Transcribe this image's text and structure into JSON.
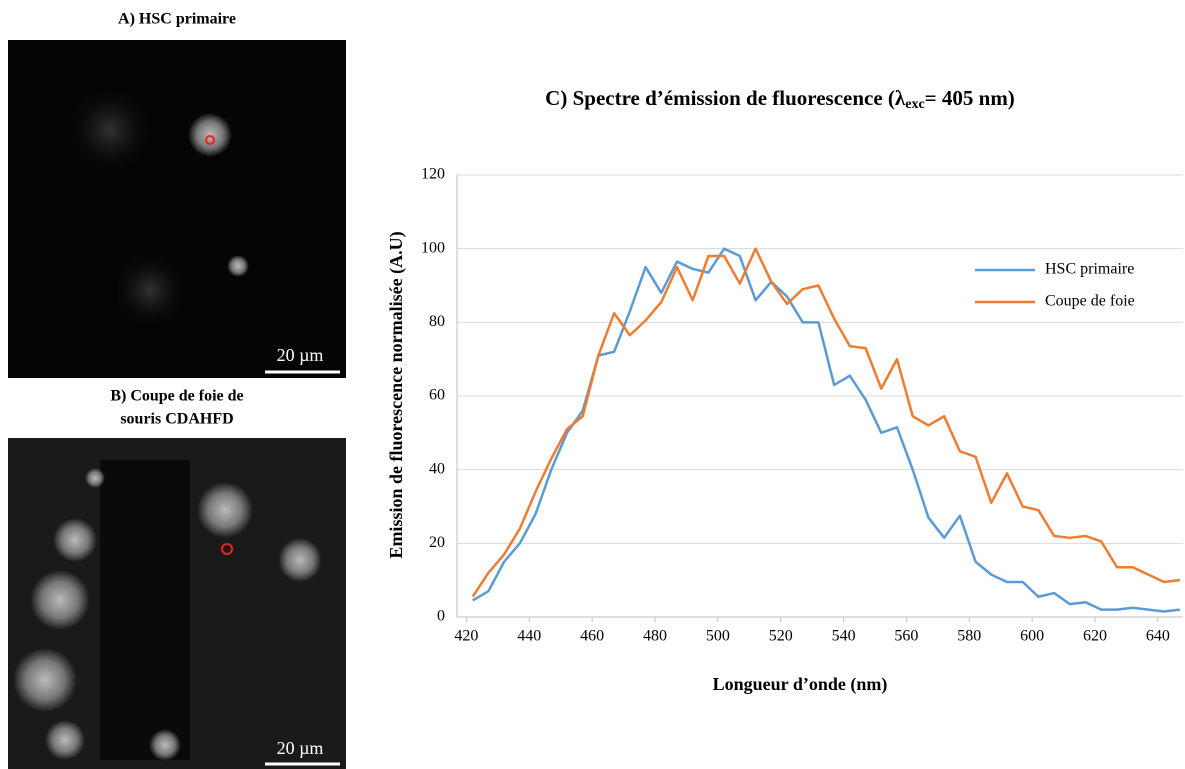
{
  "panels": [
    {
      "label": [
        "A) HSC primaire"
      ],
      "scale_bar": "20 µm"
    },
    {
      "label": [
        "B) Coupe de foie de",
        "souris CDAHFD"
      ],
      "scale_bar": "20 µm"
    }
  ],
  "chart_data": {
    "type": "line",
    "title": [
      "C) Spectre d’émission de fluorescence (λ",
      "exc",
      "= 405 nm)"
    ],
    "xlabel": "Longueur d’onde (nm)",
    "ylabel": "Emission de fluorescence normalisée (A.U)",
    "x": [
      422,
      427,
      432,
      437,
      442,
      447,
      452,
      457,
      462,
      467,
      472,
      477,
      482,
      487,
      492,
      497,
      502,
      507,
      512,
      517,
      522,
      527,
      532,
      537,
      542,
      547,
      552,
      557,
      562,
      567,
      572,
      577,
      582,
      587,
      592,
      597,
      602,
      607,
      612,
      617,
      622,
      627,
      632,
      637,
      642,
      647
    ],
    "series": [
      {
        "name": "HSC primaire",
        "color": "#5b9bd5",
        "values": [
          4.5,
          7,
          15,
          20,
          28,
          40,
          50,
          56,
          71,
          72,
          83,
          95,
          88,
          96.5,
          94.5,
          93.5,
          100,
          98,
          86,
          91,
          87,
          80,
          80,
          63,
          65.5,
          59,
          50,
          51.5,
          40,
          27,
          21.5,
          27.5,
          15,
          11.5,
          9.5,
          9.5,
          5.5,
          6.5,
          3.5,
          4,
          2,
          2,
          2.5,
          2,
          1.5,
          2
        ]
      },
      {
        "name": "Coupe de foie",
        "color": "#ed7d31",
        "values": [
          5.5,
          12,
          17,
          24,
          34,
          43,
          51,
          54.5,
          71,
          82.5,
          76.5,
          80.5,
          85.5,
          95,
          86,
          98,
          98,
          90.5,
          100,
          91,
          85,
          89,
          90,
          81,
          73.5,
          73,
          62,
          70,
          54.5,
          52,
          54.5,
          45,
          43.5,
          31,
          39,
          30,
          29,
          22,
          21.5,
          22,
          20.5,
          13.5,
          13.5,
          11.5,
          9.5,
          10
        ]
      }
    ],
    "xlim": [
      417,
      648
    ],
    "ylim": [
      0,
      120
    ],
    "xticks": [
      420,
      440,
      460,
      480,
      500,
      520,
      540,
      560,
      580,
      600,
      620,
      640
    ],
    "yticks": [
      0,
      20,
      40,
      60,
      80,
      100,
      120
    ],
    "grid": true,
    "legend": "right"
  }
}
